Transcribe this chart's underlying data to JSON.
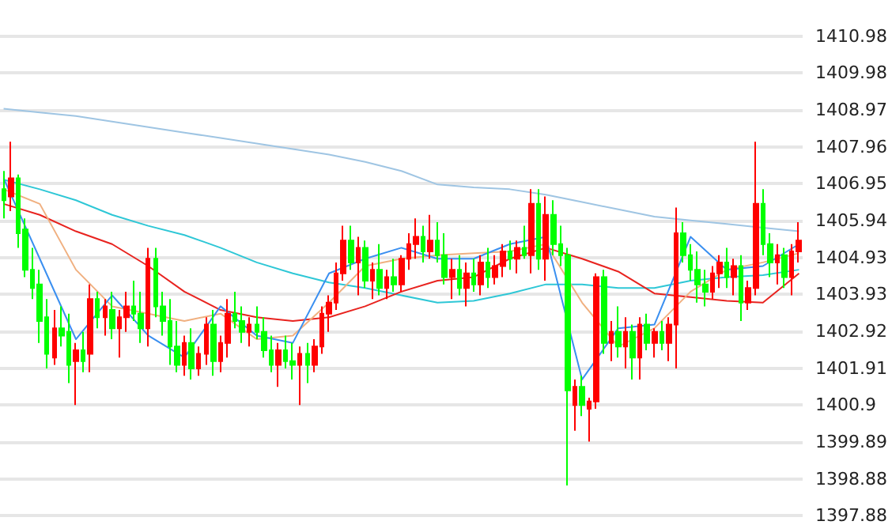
{
  "chart_data": {
    "type": "candlestick",
    "categories": [
      null,
      null,
      null,
      null,
      null,
      null,
      null,
      null,
      null,
      null,
      null,
      null,
      null,
      null,
      null,
      null,
      null,
      null,
      null,
      null,
      null,
      null,
      null,
      null,
      null,
      null,
      null,
      null,
      null,
      null,
      null,
      null,
      null,
      null,
      null,
      null,
      null,
      null,
      null,
      null,
      null,
      null,
      null,
      null,
      null,
      null,
      null,
      null,
      null,
      null,
      null,
      null,
      null,
      null,
      null,
      null,
      null,
      null,
      null,
      null,
      null,
      null,
      null,
      null,
      null,
      null,
      null,
      null,
      null,
      null,
      null,
      null,
      null,
      null,
      null,
      null,
      null,
      null,
      null,
      null,
      null,
      null,
      null,
      null,
      null,
      null,
      null,
      null,
      null,
      null,
      null,
      null,
      null,
      null,
      null,
      null,
      null,
      null,
      null,
      null,
      null,
      null,
      null,
      null,
      null,
      null,
      null,
      null,
      null,
      null,
      null
    ],
    "ylim": [
      1397.88,
      1410.98
    ],
    "yticks": [
      1397.88,
      1398.88,
      1399.89,
      1400.9,
      1401.91,
      1402.92,
      1403.93,
      1404.93,
      1405.94,
      1406.95,
      1407.96,
      1408.97,
      1409.98,
      1410.98
    ],
    "grid": "y",
    "tick_labels": "y",
    "series": [
      {
        "type": "line",
        "color": "#9fc5e3",
        "values": [
          1409.0,
          null,
          null,
          null,
          null,
          1408.9,
          null,
          null,
          null,
          null,
          1408.8,
          null,
          null,
          null,
          null,
          1408.65,
          null,
          null,
          null,
          null,
          1408.5,
          null,
          null,
          null,
          null,
          1408.35,
          null,
          null,
          null,
          null,
          1408.2,
          null,
          null,
          null,
          null,
          1408.05,
          null,
          null,
          null,
          null,
          1407.9,
          null,
          null,
          null,
          null,
          1407.75,
          null,
          null,
          null,
          null,
          1407.55,
          null,
          null,
          null,
          null,
          1407.3,
          null,
          null,
          null,
          null,
          1406.93,
          null,
          null,
          null,
          null,
          1406.85,
          null,
          null,
          null,
          null,
          1406.8,
          null,
          null,
          null,
          null,
          1406.65,
          null,
          null,
          null,
          null,
          1406.45,
          null,
          null,
          null,
          null,
          1406.25,
          null,
          null,
          null,
          null,
          1406.05,
          null,
          null,
          null,
          null,
          1405.95,
          null,
          null,
          null,
          null,
          1405.85,
          null,
          null,
          null,
          null,
          1405.75,
          null,
          null,
          null,
          null,
          1405.65
        ]
      },
      {
        "type": "line",
        "color": "#2ec7d6",
        "values": [
          1407.06,
          null,
          null,
          null,
          null,
          1406.8,
          null,
          null,
          null,
          null,
          1406.5,
          null,
          null,
          null,
          null,
          1406.1,
          null,
          null,
          null,
          null,
          1405.8,
          null,
          null,
          null,
          null,
          1405.55,
          null,
          null,
          null,
          null,
          1405.2,
          null,
          null,
          null,
          null,
          1404.8,
          null,
          null,
          null,
          null,
          1404.5,
          null,
          null,
          null,
          null,
          1404.25,
          null,
          null,
          null,
          null,
          1404.1,
          null,
          null,
          null,
          null,
          1403.9,
          null,
          null,
          null,
          null,
          1403.7,
          null,
          null,
          null,
          null,
          1403.75,
          null,
          null,
          null,
          null,
          1403.95,
          null,
          null,
          null,
          null,
          1404.2,
          null,
          null,
          null,
          null,
          1404.2,
          null,
          null,
          null,
          null,
          1404.1,
          null,
          null,
          null,
          null,
          1404.1,
          null,
          null,
          null,
          null,
          1404.3,
          null,
          null,
          null,
          null,
          1404.4,
          null,
          null,
          null,
          null,
          1404.45,
          null,
          null,
          null,
          null,
          1404.6
        ]
      },
      {
        "type": "line",
        "color": "#e8231f",
        "values": [
          1406.4,
          null,
          null,
          null,
          null,
          1406.1,
          null,
          null,
          null,
          null,
          1405.65,
          null,
          null,
          null,
          null,
          1405.3,
          null,
          null,
          null,
          null,
          1404.7,
          null,
          null,
          null,
          null,
          1404.0,
          null,
          null,
          null,
          null,
          1403.5,
          null,
          null,
          null,
          null,
          1403.3,
          null,
          null,
          null,
          null,
          1403.2,
          null,
          null,
          null,
          null,
          1403.3,
          null,
          null,
          null,
          null,
          1403.6,
          null,
          null,
          null,
          null,
          1404.0,
          null,
          null,
          null,
          null,
          1404.3,
          null,
          null,
          null,
          null,
          1404.4,
          null,
          null,
          null,
          null,
          1404.9,
          null,
          null,
          null,
          null,
          1405.2,
          null,
          null,
          null,
          null,
          1404.9,
          null,
          null,
          null,
          null,
          1404.55,
          null,
          null,
          null,
          null,
          1403.95,
          null,
          null,
          null,
          null,
          1403.85,
          null,
          null,
          null,
          null,
          1403.75,
          null,
          null,
          null,
          null,
          1403.7,
          null,
          null,
          null,
          null,
          1404.5
        ]
      },
      {
        "type": "line",
        "color": "#f0b080",
        "values": [
          1406.8,
          null,
          null,
          null,
          null,
          1406.4,
          null,
          null,
          null,
          null,
          1404.6,
          null,
          null,
          null,
          null,
          1403.6,
          null,
          null,
          null,
          null,
          1403.4,
          null,
          null,
          null,
          null,
          1403.2,
          null,
          null,
          null,
          null,
          1403.4,
          null,
          null,
          null,
          null,
          1402.7,
          null,
          null,
          null,
          null,
          1402.8,
          null,
          null,
          null,
          null,
          1403.7,
          null,
          null,
          null,
          null,
          1404.7,
          null,
          null,
          null,
          null,
          1404.9,
          null,
          null,
          null,
          null,
          1405.0,
          null,
          null,
          null,
          null,
          1405.05,
          null,
          null,
          null,
          null,
          1405.1,
          null,
          null,
          null,
          null,
          1405.3,
          null,
          null,
          null,
          null,
          1403.7,
          null,
          null,
          null,
          null,
          1402.5,
          null,
          null,
          null,
          null,
          1403.0,
          null,
          null,
          null,
          null,
          1404.0,
          null,
          null,
          null,
          null,
          1404.6,
          null,
          null,
          null,
          null,
          1404.8,
          null,
          null,
          null,
          null,
          1405.05
        ]
      },
      {
        "type": "line",
        "color": "#3a8ff0",
        "values": [
          1407.1,
          null,
          null,
          null,
          null,
          1404.9,
          null,
          null,
          null,
          null,
          1402.7,
          null,
          null,
          null,
          null,
          1403.9,
          null,
          null,
          null,
          null,
          1402.8,
          null,
          null,
          null,
          null,
          1402.2,
          null,
          null,
          null,
          null,
          1403.6,
          null,
          null,
          null,
          null,
          1402.8,
          null,
          null,
          null,
          null,
          1402.6,
          null,
          null,
          null,
          null,
          1404.5,
          null,
          null,
          null,
          null,
          1404.9,
          null,
          null,
          null,
          null,
          1405.2,
          null,
          null,
          null,
          null,
          1404.9,
          null,
          null,
          null,
          null,
          1404.9,
          null,
          null,
          null,
          null,
          1405.3,
          null,
          null,
          null,
          null,
          1405.5,
          null,
          null,
          null,
          null,
          1401.6,
          null,
          null,
          null,
          null,
          1403.0,
          null,
          null,
          null,
          null,
          1403.1,
          null,
          null,
          null,
          null,
          1405.5,
          null,
          null,
          null,
          null,
          1404.6,
          null,
          null,
          null,
          null,
          1404.7,
          null,
          null,
          null,
          null,
          1405.3
        ]
      },
      {
        "colors": [
          "#00ff00",
          "#ff0000",
          "#00ff00",
          "#00ff00",
          "#00ff00",
          "#00ff00",
          "#00ff00",
          "#ff0000",
          "#00ff00",
          "#00ff00",
          "#ff0000",
          "#00ff00",
          "#ff0000",
          "#00ff00",
          "#ff0000",
          "#00ff00",
          "#ff0000",
          "#ff0000",
          "#00ff00",
          "#00ff00",
          "#ff0000",
          "#00ff00",
          "#00ff00",
          "#00ff00",
          "#00ff00",
          "#ff0000",
          "#00ff00",
          "#ff0000",
          "#ff0000",
          "#00ff00",
          "#ff0000",
          "#ff0000",
          "#00ff00",
          "#00ff00",
          "#ff0000",
          "#00ff00",
          "#00ff00",
          "#00ff00",
          "#ff0000",
          "#00ff00",
          "#00ff00",
          "#ff0000",
          "#00ff00",
          "#ff0000",
          "#ff0000",
          "#ff0000",
          "#ff0000",
          "#ff0000",
          "#00ff00",
          "#ff0000",
          "#00ff00",
          "#ff0000",
          "#00ff00",
          "#ff0000",
          "#00ff00",
          "#ff0000",
          "#ff0000",
          "#ff0000",
          "#00ff00",
          "#ff0000",
          "#00ff00",
          "#00ff00",
          "#ff0000",
          "#00ff00",
          "#ff0000",
          "#00ff00",
          "#ff0000",
          "#00ff00",
          "#ff0000",
          "#ff0000",
          "#00ff00",
          "#ff0000",
          "#00ff00",
          "#ff0000",
          "#00ff00",
          "#ff0000",
          "#00ff00",
          "#00ff00",
          "#00ff00",
          "#ff0000",
          "#00ff00",
          "#ff0000",
          "#ff0000",
          "#00ff00",
          "#ff0000",
          "#00ff00",
          "#ff0000",
          "#00ff00",
          "#ff0000",
          "#00ff00",
          "#ff0000",
          "#00ff00",
          "#ff0000",
          "#ff0000",
          "#00ff00",
          "#00ff00",
          "#00ff00",
          "#00ff00",
          "#ff0000",
          "#ff0000",
          "#00ff00",
          "#ff0000",
          "#00ff00",
          "#ff0000",
          "#ff0000",
          "#00ff00",
          "#00ff00",
          "#ff0000",
          "#00ff00",
          "#ff0000",
          "#ff0000"
        ],
        "ohlc": [
          [
            1406.8,
            1407.3,
            1406.0,
            1406.5
          ],
          [
            1406.6,
            1408.1,
            1406.2,
            1407.1
          ],
          [
            1407.1,
            1407.2,
            1405.2,
            1405.6
          ],
          [
            1405.7,
            1406.0,
            1404.4,
            1404.6
          ],
          [
            1404.6,
            1405.2,
            1403.8,
            1404.1
          ],
          [
            1404.2,
            1404.6,
            1402.6,
            1403.2
          ],
          [
            1403.3,
            1403.8,
            1401.9,
            1402.3
          ],
          [
            1402.2,
            1403.5,
            1402.0,
            1403.0
          ],
          [
            1403.0,
            1403.6,
            1402.5,
            1402.8
          ],
          [
            1402.9,
            1403.4,
            1401.5,
            1402.0
          ],
          [
            1402.1,
            1402.6,
            1400.9,
            1402.4
          ],
          [
            1402.4,
            1402.9,
            1401.8,
            1402.1
          ],
          [
            1402.3,
            1404.2,
            1401.8,
            1403.8
          ],
          [
            1403.8,
            1404.0,
            1403.0,
            1403.3
          ],
          [
            1403.3,
            1403.8,
            1402.8,
            1403.6
          ],
          [
            1403.5,
            1404.0,
            1402.7,
            1403.0
          ],
          [
            1403.0,
            1403.5,
            1402.2,
            1403.3
          ],
          [
            1403.3,
            1404.0,
            1402.9,
            1403.6
          ],
          [
            1403.6,
            1404.3,
            1403.2,
            1403.4
          ],
          [
            1403.4,
            1404.0,
            1402.6,
            1403.0
          ],
          [
            1403.0,
            1405.2,
            1402.5,
            1404.9
          ],
          [
            1404.9,
            1405.2,
            1403.3,
            1403.6
          ],
          [
            1403.6,
            1404.0,
            1402.8,
            1403.2
          ],
          [
            1403.2,
            1403.8,
            1402.0,
            1402.5
          ],
          [
            1402.5,
            1403.2,
            1401.8,
            1402.0
          ],
          [
            1402.0,
            1402.8,
            1401.7,
            1402.6
          ],
          [
            1402.6,
            1403.0,
            1401.6,
            1401.9
          ],
          [
            1401.9,
            1402.5,
            1401.7,
            1402.3
          ],
          [
            1402.3,
            1403.3,
            1402.0,
            1403.1
          ],
          [
            1403.1,
            1403.5,
            1401.7,
            1402.1
          ],
          [
            1402.1,
            1402.8,
            1401.8,
            1402.6
          ],
          [
            1402.6,
            1403.8,
            1402.2,
            1403.4
          ],
          [
            1403.4,
            1404.0,
            1403.0,
            1403.2
          ],
          [
            1403.2,
            1403.6,
            1402.6,
            1402.9
          ],
          [
            1402.9,
            1403.3,
            1402.5,
            1403.1
          ],
          [
            1403.1,
            1403.6,
            1402.7,
            1402.9
          ],
          [
            1402.9,
            1403.3,
            1402.2,
            1402.4
          ],
          [
            1402.4,
            1402.8,
            1401.8,
            1402.0
          ],
          [
            1402.0,
            1402.6,
            1401.4,
            1402.4
          ],
          [
            1402.4,
            1402.8,
            1401.9,
            1402.1
          ],
          [
            1402.1,
            1402.6,
            1401.6,
            1402.0
          ],
          [
            1402.0,
            1402.5,
            1400.9,
            1402.3
          ],
          [
            1402.3,
            1402.6,
            1401.5,
            1402.0
          ],
          [
            1402.0,
            1402.7,
            1401.8,
            1402.5
          ],
          [
            1402.5,
            1403.6,
            1402.3,
            1403.4
          ],
          [
            1403.4,
            1403.9,
            1402.9,
            1403.7
          ],
          [
            1403.7,
            1404.8,
            1403.5,
            1404.5
          ],
          [
            1404.5,
            1405.8,
            1404.3,
            1405.4
          ],
          [
            1405.4,
            1405.8,
            1404.6,
            1404.8
          ],
          [
            1404.8,
            1405.5,
            1403.9,
            1405.2
          ],
          [
            1405.2,
            1405.4,
            1404.1,
            1404.3
          ],
          [
            1404.3,
            1404.8,
            1403.8,
            1404.6
          ],
          [
            1404.6,
            1405.3,
            1403.9,
            1404.1
          ],
          [
            1404.1,
            1404.6,
            1403.8,
            1404.4
          ],
          [
            1404.4,
            1404.9,
            1404.0,
            1404.2
          ],
          [
            1404.2,
            1405.0,
            1404.0,
            1404.9
          ],
          [
            1404.9,
            1405.6,
            1404.6,
            1405.3
          ],
          [
            1405.3,
            1406.0,
            1404.9,
            1405.5
          ],
          [
            1405.5,
            1405.8,
            1404.8,
            1405.1
          ],
          [
            1405.1,
            1406.1,
            1404.9,
            1405.4
          ],
          [
            1405.4,
            1405.9,
            1404.8,
            1405.0
          ],
          [
            1405.0,
            1405.6,
            1404.2,
            1404.4
          ],
          [
            1404.4,
            1404.9,
            1403.8,
            1404.6
          ],
          [
            1404.6,
            1405.0,
            1403.9,
            1404.1
          ],
          [
            1404.1,
            1404.8,
            1403.6,
            1404.5
          ],
          [
            1404.5,
            1404.9,
            1404.0,
            1404.2
          ],
          [
            1404.2,
            1405.0,
            1403.9,
            1404.8
          ],
          [
            1404.8,
            1405.2,
            1404.1,
            1404.4
          ],
          [
            1404.4,
            1405.0,
            1404.2,
            1404.7
          ],
          [
            1404.7,
            1405.3,
            1404.4,
            1405.1
          ],
          [
            1405.1,
            1405.4,
            1404.6,
            1404.9
          ],
          [
            1404.9,
            1405.4,
            1404.5,
            1405.2
          ],
          [
            1405.2,
            1405.8,
            1404.9,
            1405.0
          ],
          [
            1405.0,
            1406.8,
            1404.5,
            1406.4
          ],
          [
            1406.4,
            1406.8,
            1404.6,
            1404.9
          ],
          [
            1404.9,
            1406.6,
            1404.3,
            1406.1
          ],
          [
            1406.1,
            1406.5,
            1405.0,
            1405.3
          ],
          [
            1405.3,
            1405.8,
            1404.7,
            1405.0
          ],
          [
            1405.0,
            1405.2,
            1398.7,
            1401.3
          ],
          [
            1400.9,
            1401.6,
            1400.2,
            1401.4
          ],
          [
            1401.4,
            1401.7,
            1400.6,
            1400.9
          ],
          [
            1400.8,
            1401.1,
            1399.9,
            1401.0
          ],
          [
            1401.0,
            1404.5,
            1400.8,
            1404.4
          ],
          [
            1404.4,
            1404.6,
            1402.3,
            1402.6
          ],
          [
            1402.6,
            1403.2,
            1402.1,
            1402.9
          ],
          [
            1402.9,
            1403.6,
            1402.2,
            1402.5
          ],
          [
            1402.5,
            1403.3,
            1401.9,
            1402.9
          ],
          [
            1402.9,
            1403.1,
            1401.6,
            1402.2
          ],
          [
            1402.2,
            1403.3,
            1401.6,
            1403.1
          ],
          [
            1403.1,
            1403.4,
            1402.4,
            1402.6
          ],
          [
            1402.6,
            1403.0,
            1402.2,
            1402.9
          ],
          [
            1402.9,
            1403.2,
            1402.4,
            1402.6
          ],
          [
            1402.6,
            1403.3,
            1402.1,
            1403.1
          ],
          [
            1403.1,
            1406.3,
            1401.9,
            1405.6
          ],
          [
            1405.6,
            1405.9,
            1404.8,
            1405.0
          ],
          [
            1405.0,
            1405.3,
            1404.3,
            1404.6
          ],
          [
            1404.6,
            1405.1,
            1403.7,
            1404.2
          ],
          [
            1404.2,
            1404.6,
            1403.6,
            1404.0
          ],
          [
            1404.0,
            1404.7,
            1403.8,
            1404.5
          ],
          [
            1404.5,
            1405.0,
            1404.1,
            1404.8
          ],
          [
            1404.8,
            1405.2,
            1404.1,
            1404.4
          ],
          [
            1404.4,
            1404.9,
            1403.9,
            1404.7
          ],
          [
            1404.7,
            1405.0,
            1403.2,
            1403.7
          ],
          [
            1403.7,
            1404.3,
            1403.5,
            1404.1
          ],
          [
            1404.1,
            1408.1,
            1403.9,
            1406.4
          ],
          [
            1406.4,
            1406.8,
            1405.0,
            1405.3
          ],
          [
            1405.3,
            1405.6,
            1404.4,
            1404.8
          ],
          [
            1404.8,
            1405.3,
            1404.2,
            1405.0
          ],
          [
            1405.0,
            1405.2,
            1404.1,
            1404.4
          ],
          [
            1404.4,
            1405.3,
            1403.9,
            1405.1
          ],
          [
            1405.1,
            1405.9,
            1404.8,
            1405.4
          ]
        ]
      }
    ]
  }
}
